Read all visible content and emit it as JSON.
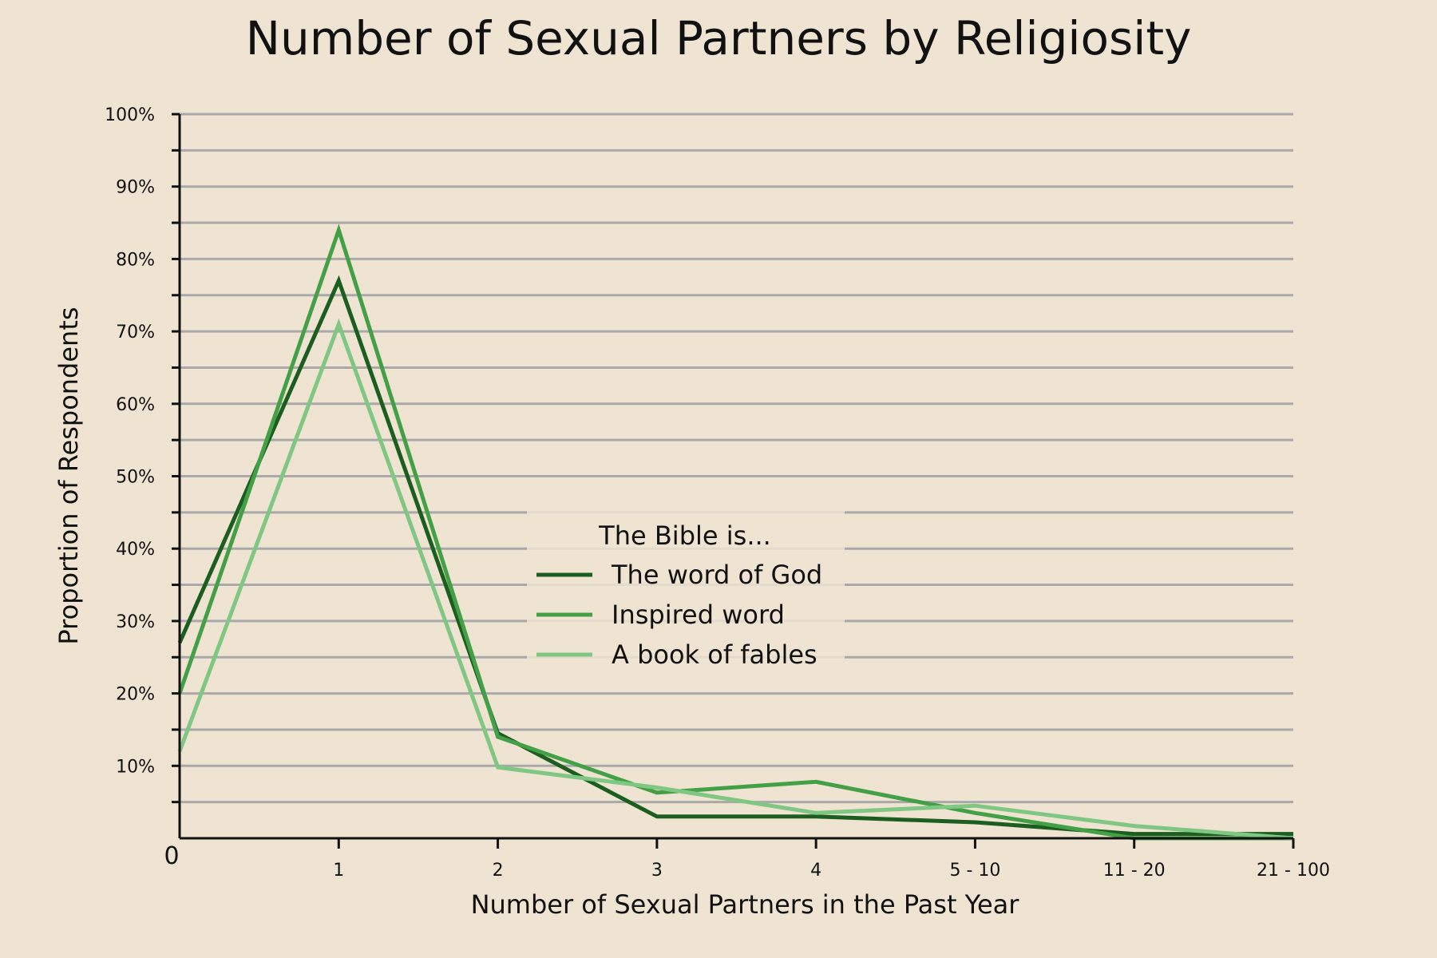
{
  "chart_data": {
    "type": "line",
    "title": "Number of Sexual Partners by Religiosity",
    "xlabel": "Number of Sexual Partners in the Past Year",
    "ylabel": "Proportion of Respondents",
    "categories": [
      "0",
      "1",
      "2",
      "3",
      "4",
      "5 - 10",
      "11 - 20",
      "21 - 100"
    ],
    "ylim": [
      0,
      100
    ],
    "y_ticks": [
      10,
      20,
      30,
      40,
      50,
      60,
      70,
      80,
      90,
      100
    ],
    "y_tick_labels": [
      "10%",
      "20%",
      "30%",
      "40%",
      "50%",
      "60%",
      "70%",
      "80%",
      "90%",
      "100%"
    ],
    "grid": true,
    "legend": {
      "title": "The Bible is...",
      "placement": "center"
    },
    "series": [
      {
        "name": "The word of God",
        "color": "#1b5e20",
        "values": [
          27,
          77,
          14.5,
          3,
          3,
          2.2,
          0.6,
          0.6
        ]
      },
      {
        "name": "Inspired word",
        "color": "#43a047",
        "values": [
          20,
          84,
          14,
          6.3,
          7.8,
          3.5,
          0,
          0
        ]
      },
      {
        "name": "A book of fables",
        "color": "#81c784",
        "values": [
          12,
          71,
          9.8,
          7,
          3.5,
          4.5,
          1.7,
          0
        ]
      }
    ]
  }
}
